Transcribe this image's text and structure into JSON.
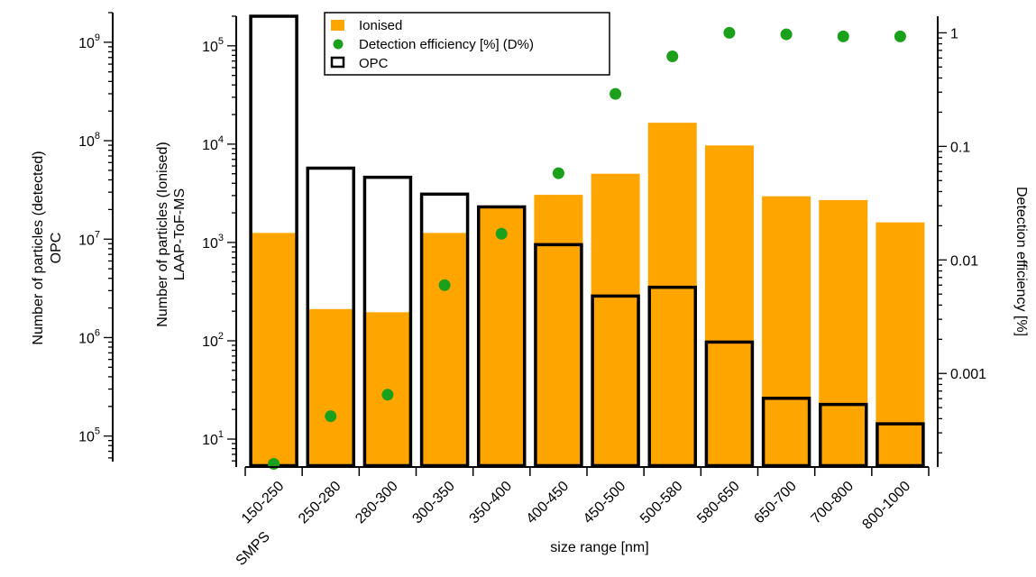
{
  "chart_data": {
    "type": "bar",
    "categories": [
      "150-250",
      "250-280",
      "280-300",
      "300-350",
      "350-400",
      "400-450",
      "450-500",
      "500-580",
      "580-650",
      "650-700",
      "700-800",
      "800-1000"
    ],
    "xlabel": "size range [nm]",
    "xnote": "SMPS",
    "axes": {
      "opc_left": {
        "label_lines": [
          "Number of particles (detected)",
          "OPC"
        ],
        "scale": "log",
        "ylim": [
          55000,
          2000000000
        ],
        "ticks": [
          "10^5",
          "10^6",
          "10^7",
          "10^8",
          "10^9"
        ]
      },
      "laap_left": {
        "label_lines": [
          "Number of particles (Ionised)",
          "LAAP-ToF-MS"
        ],
        "scale": "log",
        "ylim": [
          5.2,
          200000
        ],
        "ticks": [
          "10^1",
          "10^2",
          "10^3",
          "10^4",
          "10^5"
        ]
      },
      "right": {
        "label": "Detection efficiency [%]",
        "scale": "log",
        "ylim": [
          0.00015,
          1.4
        ],
        "ticks": [
          "0.001",
          "0.01",
          "0.1",
          "1"
        ]
      }
    },
    "series": [
      {
        "name": "Ionised",
        "type": "bar",
        "axis": "laap_left",
        "color": "#ffa500",
        "values": [
          1250,
          210,
          195,
          1250,
          2250,
          3050,
          5000,
          16500,
          9700,
          2950,
          2700,
          1600
        ]
      },
      {
        "name": "Detection efficiency [%] (D%)",
        "type": "scatter",
        "axis": "right",
        "color": "#1aa01a",
        "values": [
          0.00016,
          0.00042,
          0.00065,
          0.006,
          0.017,
          0.058,
          0.29,
          0.62,
          1.0,
          0.97,
          0.93,
          0.93
        ]
      },
      {
        "name": "OPC",
        "type": "bar-outline",
        "axis": "laap_left",
        "color": "#000000",
        "values": [
          200000,
          5700,
          4600,
          3100,
          2300,
          950,
          285,
          350,
          97,
          26,
          22.5,
          14.3
        ]
      }
    ],
    "legend": {
      "position": "top-left of plot",
      "entries": [
        "Ionised",
        "Detection efficiency [%] (D%)",
        "OPC"
      ]
    }
  }
}
